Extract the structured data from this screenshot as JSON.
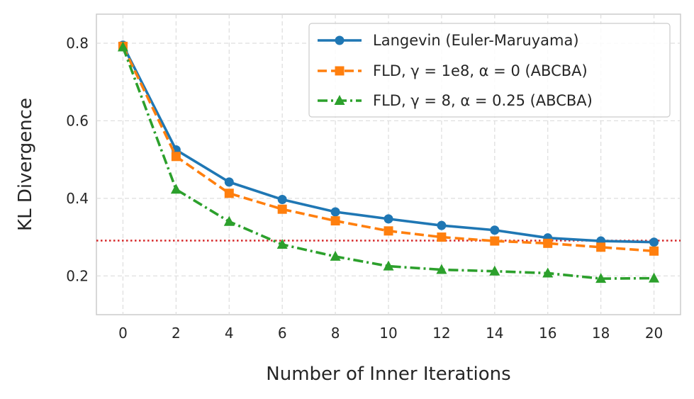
{
  "chart_data": {
    "type": "line",
    "title": "",
    "xlabel": "Number of Inner Iterations",
    "ylabel": "KL Divergence",
    "x": [
      0,
      2,
      4,
      6,
      8,
      10,
      12,
      14,
      16,
      18,
      20
    ],
    "xticks": [
      "0",
      "2",
      "4",
      "6",
      "8",
      "10",
      "12",
      "14",
      "16",
      "18",
      "20"
    ],
    "yticks": [
      "0.2",
      "0.4",
      "0.6",
      "0.8"
    ],
    "ytick_values": [
      0.2,
      0.4,
      0.6,
      0.8
    ],
    "xlim": [
      -1,
      21
    ],
    "ylim": [
      0.1,
      0.875
    ],
    "grid": true,
    "legend_position": "top-right",
    "series": [
      {
        "name": "Langevin (Euler-Maruyama)",
        "color": "#1f77b4",
        "line_style": "solid",
        "marker": "circle",
        "values": [
          0.795,
          0.525,
          0.442,
          0.397,
          0.365,
          0.347,
          0.33,
          0.318,
          0.298,
          0.29,
          0.287
        ]
      },
      {
        "name": "FLD, γ = 1e8, α = 0 (ABCBA)",
        "color": "#ff7f0e",
        "line_style": "dashed",
        "marker": "square",
        "values": [
          0.792,
          0.508,
          0.413,
          0.372,
          0.342,
          0.316,
          0.3,
          0.29,
          0.284,
          0.274,
          0.264
        ]
      },
      {
        "name": "FLD, γ = 8, α = 0.25 (ABCBA)",
        "color": "#2ca02c",
        "line_style": "dashdot",
        "marker": "triangle",
        "values": [
          0.79,
          0.423,
          0.34,
          0.281,
          0.25,
          0.225,
          0.216,
          0.212,
          0.207,
          0.193,
          0.194
        ]
      }
    ],
    "reference_line": {
      "value": 0.291,
      "color": "#d62728",
      "line_style": "dotted"
    }
  }
}
